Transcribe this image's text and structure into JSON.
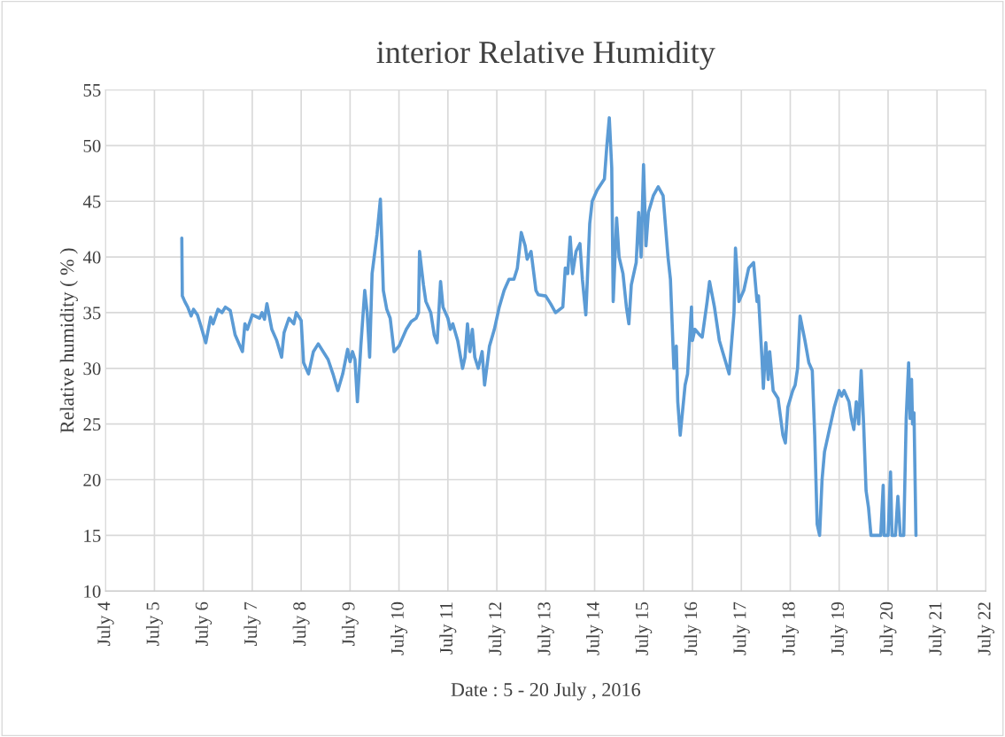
{
  "chart_data": {
    "type": "line",
    "title": "interior Relative Humidity",
    "xlabel": "Date : 5 - 20 July , 2016",
    "ylabel": "Relative humidity ( % )",
    "xlim": [
      "2016-07-04",
      "2016-07-22"
    ],
    "xticks": [
      {
        "value": "2016-07-04",
        "label": "July 4"
      },
      {
        "value": "2016-07-05",
        "label": "July 5"
      },
      {
        "value": "2016-07-06",
        "label": "July 6"
      },
      {
        "value": "2016-07-07",
        "label": "July 7"
      },
      {
        "value": "2016-07-08",
        "label": "July 8"
      },
      {
        "value": "2016-07-09",
        "label": "July 9"
      },
      {
        "value": "2016-07-10",
        "label": "July 10"
      },
      {
        "value": "2016-07-11",
        "label": "July 11"
      },
      {
        "value": "2016-07-12",
        "label": "July 12"
      },
      {
        "value": "2016-07-13",
        "label": "July 13"
      },
      {
        "value": "2016-07-14",
        "label": "July 14"
      },
      {
        "value": "2016-07-15",
        "label": "July 15"
      },
      {
        "value": "2016-07-16",
        "label": "July 16"
      },
      {
        "value": "2016-07-17",
        "label": "July 17"
      },
      {
        "value": "2016-07-18",
        "label": "July 18"
      },
      {
        "value": "2016-07-19",
        "label": "July 19"
      },
      {
        "value": "2016-07-20",
        "label": "July 20"
      },
      {
        "value": "2016-07-21",
        "label": "July 21"
      },
      {
        "value": "2016-07-22",
        "label": "July 22"
      }
    ],
    "ylim": [
      10,
      55
    ],
    "yticks": [
      10,
      15,
      20,
      25,
      30,
      35,
      40,
      45,
      50,
      55
    ],
    "grid": true,
    "marker": "none",
    "line_style": "solid",
    "series": [
      {
        "color": "#5b9bd5",
        "x": [
          "2016-07-05T13:26",
          "2016-07-05T13:41",
          "2016-07-05T14:53",
          "2016-07-05T16:19",
          "2016-07-05T18:00",
          "2016-07-05T19:12",
          "2016-07-05T21:07",
          "2016-07-05T22:48",
          "2016-07-06T01:12",
          "2016-07-06T03:36",
          "2016-07-06T04:48",
          "2016-07-06T07:12",
          "2016-07-06T09:07",
          "2016-07-06T10:48",
          "2016-07-06T13:12",
          "2016-07-06T15:36",
          "2016-07-06T18:00",
          "2016-07-06T19:12",
          "2016-07-06T20:24",
          "2016-07-06T21:36",
          "2016-07-07T00:00",
          "2016-07-07T03:36",
          "2016-07-07T04:48",
          "2016-07-07T06:00",
          "2016-07-07T07:12",
          "2016-07-07T09:36",
          "2016-07-07T12:00",
          "2016-07-07T14:24",
          "2016-07-07T15:36",
          "2016-07-07T18:00",
          "2016-07-07T20:24",
          "2016-07-07T21:36",
          "2016-07-08T00:00",
          "2016-07-08T01:12",
          "2016-07-08T03:36",
          "2016-07-08T06:00",
          "2016-07-08T08:24",
          "2016-07-08T10:48",
          "2016-07-08T13:12",
          "2016-07-08T15:36",
          "2016-07-08T18:00",
          "2016-07-08T20:24",
          "2016-07-08T22:48",
          "2016-07-09T00:00",
          "2016-07-09T01:12",
          "2016-07-09T02:24",
          "2016-07-09T03:36",
          "2016-07-09T05:17",
          "2016-07-09T07:12",
          "2016-07-09T08:24",
          "2016-07-09T09:36",
          "2016-07-09T10:48",
          "2016-07-09T13:12",
          "2016-07-09T14:53",
          "2016-07-09T16:19",
          "2016-07-09T18:00",
          "2016-07-09T19:41",
          "2016-07-09T21:36",
          "2016-07-10T00:00",
          "2016-07-10T01:12",
          "2016-07-10T03:36",
          "2016-07-10T06:00",
          "2016-07-10T08:24",
          "2016-07-10T09:36",
          "2016-07-10T10:05",
          "2016-07-10T12:00",
          "2016-07-10T13:12",
          "2016-07-10T15:36",
          "2016-07-10T17:17",
          "2016-07-10T18:43",
          "2016-07-10T20:24",
          "2016-07-10T21:36",
          "2016-07-11T00:00",
          "2016-07-11T01:12",
          "2016-07-11T02:24",
          "2016-07-11T04:48",
          "2016-07-11T07:12",
          "2016-07-11T08:24",
          "2016-07-11T09:36",
          "2016-07-11T10:48",
          "2016-07-11T12:00",
          "2016-07-11T13:12",
          "2016-07-11T14:53",
          "2016-07-11T16:48",
          "2016-07-11T18:00",
          "2016-07-11T20:24",
          "2016-07-11T22:48",
          "2016-07-12T01:12",
          "2016-07-12T03:36",
          "2016-07-12T06:00",
          "2016-07-12T08:24",
          "2016-07-12T10:05",
          "2016-07-12T12:00",
          "2016-07-12T13:55",
          "2016-07-12T14:53",
          "2016-07-12T16:48",
          "2016-07-12T19:12",
          "2016-07-12T20:24",
          "2016-07-13T00:00",
          "2016-07-13T02:24",
          "2016-07-13T04:48",
          "2016-07-13T08:24",
          "2016-07-13T09:36",
          "2016-07-13T10:48",
          "2016-07-13T12:00",
          "2016-07-13T13:12",
          "2016-07-13T14:53",
          "2016-07-13T16:48",
          "2016-07-13T18:00",
          "2016-07-13T19:41",
          "2016-07-13T21:36",
          "2016-07-13T22:48",
          "2016-07-14T01:12",
          "2016-07-14T04:48",
          "2016-07-14T06:00",
          "2016-07-14T07:12",
          "2016-07-14T08:24",
          "2016-07-14T09:07",
          "2016-07-14T10:48",
          "2016-07-14T12:00",
          "2016-07-14T13:55",
          "2016-07-14T15:36",
          "2016-07-14T16:48",
          "2016-07-14T18:00",
          "2016-07-14T20:24",
          "2016-07-14T21:36",
          "2016-07-14T22:48",
          "2016-07-15T00:00",
          "2016-07-15T01:12",
          "2016-07-15T02:24",
          "2016-07-15T04:48",
          "2016-07-15T07:12",
          "2016-07-15T09:36",
          "2016-07-15T12:00",
          "2016-07-15T13:12",
          "2016-07-15T14:53",
          "2016-07-15T16:05",
          "2016-07-15T16:48",
          "2016-07-15T18:00",
          "2016-07-15T20:24",
          "2016-07-15T21:36",
          "2016-07-15T23:31",
          "2016-07-16T00:00",
          "2016-07-16T01:12",
          "2016-07-16T03:36",
          "2016-07-16T04:48",
          "2016-07-16T07:12",
          "2016-07-16T08:24",
          "2016-07-16T10:48",
          "2016-07-16T13:12",
          "2016-07-16T15:36",
          "2016-07-16T18:00",
          "2016-07-16T20:24",
          "2016-07-16T21:07",
          "2016-07-16T22:48",
          "2016-07-17T01:12",
          "2016-07-17T03:36",
          "2016-07-17T06:00",
          "2016-07-17T07:41",
          "2016-07-17T08:24",
          "2016-07-17T10:05",
          "2016-07-17T10:48",
          "2016-07-17T12:00",
          "2016-07-17T13:12",
          "2016-07-17T13:55",
          "2016-07-17T15:36",
          "2016-07-17T18:00",
          "2016-07-17T20:24",
          "2016-07-17T21:36",
          "2016-07-17T22:48",
          "2016-07-18T01:12",
          "2016-07-18T02:24",
          "2016-07-18T03:36",
          "2016-07-18T04:48",
          "2016-07-18T07:12",
          "2016-07-18T09:07",
          "2016-07-18T10:48",
          "2016-07-18T12:00",
          "2016-07-18T13:12",
          "2016-07-18T14:24",
          "2016-07-18T15:36",
          "2016-07-18T16:48",
          "2016-07-18T19:12",
          "2016-07-18T21:36",
          "2016-07-19T00:00",
          "2016-07-19T01:12",
          "2016-07-19T02:24",
          "2016-07-19T04:48",
          "2016-07-19T06:00",
          "2016-07-19T07:12",
          "2016-07-19T08:24",
          "2016-07-19T09:36",
          "2016-07-19T10:48",
          "2016-07-19T12:00",
          "2016-07-19T13:12",
          "2016-07-19T14:24",
          "2016-07-19T15:36",
          "2016-07-19T16:48",
          "2016-07-19T20:24",
          "2016-07-19T21:36",
          "2016-07-19T22:05",
          "2016-07-20T00:00",
          "2016-07-20T01:12",
          "2016-07-20T01:55",
          "2016-07-20T03:36",
          "2016-07-20T04:48",
          "2016-07-20T06:00",
          "2016-07-20T07:41",
          "2016-07-20T08:53",
          "2016-07-20T10:05",
          "2016-07-20T10:48",
          "2016-07-20T11:31",
          "2016-07-20T12:00",
          "2016-07-20T12:43",
          "2016-07-20T13:41"
        ],
        "values": [
          41.7,
          36.5,
          36.0,
          35.5,
          34.7,
          35.3,
          34.8,
          33.8,
          32.3,
          34.6,
          34.0,
          35.3,
          35.0,
          35.5,
          35.2,
          33.0,
          32.0,
          31.5,
          34.0,
          33.5,
          34.8,
          34.5,
          35.0,
          34.4,
          35.8,
          33.5,
          32.5,
          31.0,
          33.2,
          34.5,
          34.0,
          35.0,
          34.3,
          30.5,
          29.5,
          31.5,
          32.2,
          31.5,
          30.8,
          29.5,
          28.0,
          29.5,
          31.7,
          30.6,
          31.5,
          30.8,
          27.0,
          32.0,
          37.0,
          35.0,
          31.0,
          38.5,
          42.0,
          45.2,
          37.0,
          35.3,
          34.5,
          31.5,
          32.0,
          32.5,
          33.5,
          34.2,
          34.5,
          35.0,
          40.5,
          37.5,
          36.0,
          35.0,
          33.0,
          32.3,
          37.8,
          35.5,
          34.5,
          33.5,
          34.0,
          32.5,
          30.0,
          31.0,
          34.0,
          31.5,
          33.5,
          31.0,
          30.0,
          31.5,
          28.5,
          32.0,
          33.5,
          35.5,
          37.0,
          38.0,
          38.0,
          39.0,
          42.2,
          41.0,
          39.8,
          40.5,
          37.0,
          36.6,
          36.5,
          35.8,
          35.0,
          35.5,
          39.0,
          38.5,
          41.8,
          38.5,
          40.5,
          41.2,
          38.0,
          34.8,
          43.0,
          45.0,
          46.0,
          47.0,
          50.0,
          52.5,
          48.0,
          36.0,
          43.5,
          40.0,
          38.5,
          35.5,
          34.0,
          37.5,
          39.5,
          44.0,
          40.0,
          48.3,
          41.0,
          44.0,
          45.5,
          46.3,
          45.5,
          40.0,
          38.0,
          30.0,
          32.0,
          27.0,
          24.0,
          28.5,
          29.5,
          35.5,
          32.5,
          33.5,
          33.0,
          32.8,
          36.0,
          37.8,
          35.5,
          32.5,
          31.0,
          29.5,
          35.0,
          40.8,
          36.0,
          37.0,
          39.0,
          39.5,
          36.0,
          36.5,
          31.0,
          28.2,
          32.3,
          29.0,
          31.5,
          28.0,
          27.3,
          24.0,
          23.3,
          26.5,
          28.0,
          28.5,
          30.0,
          34.7,
          32.5,
          30.5,
          29.8,
          24.0,
          16.0,
          15.0,
          20.0,
          22.5,
          24.5,
          26.5,
          28.0,
          27.5,
          28.0,
          27.0,
          25.5,
          24.5,
          27.0,
          25.0,
          29.8,
          25.0,
          19.0,
          17.5,
          15.0,
          15.0,
          15.0,
          19.5,
          15.0,
          15.0,
          20.7,
          15.0,
          15.0,
          18.5,
          15.0,
          15.0,
          25.5,
          30.5,
          25.5,
          29.0,
          25.0,
          26.0,
          15.0
        ]
      }
    ]
  }
}
